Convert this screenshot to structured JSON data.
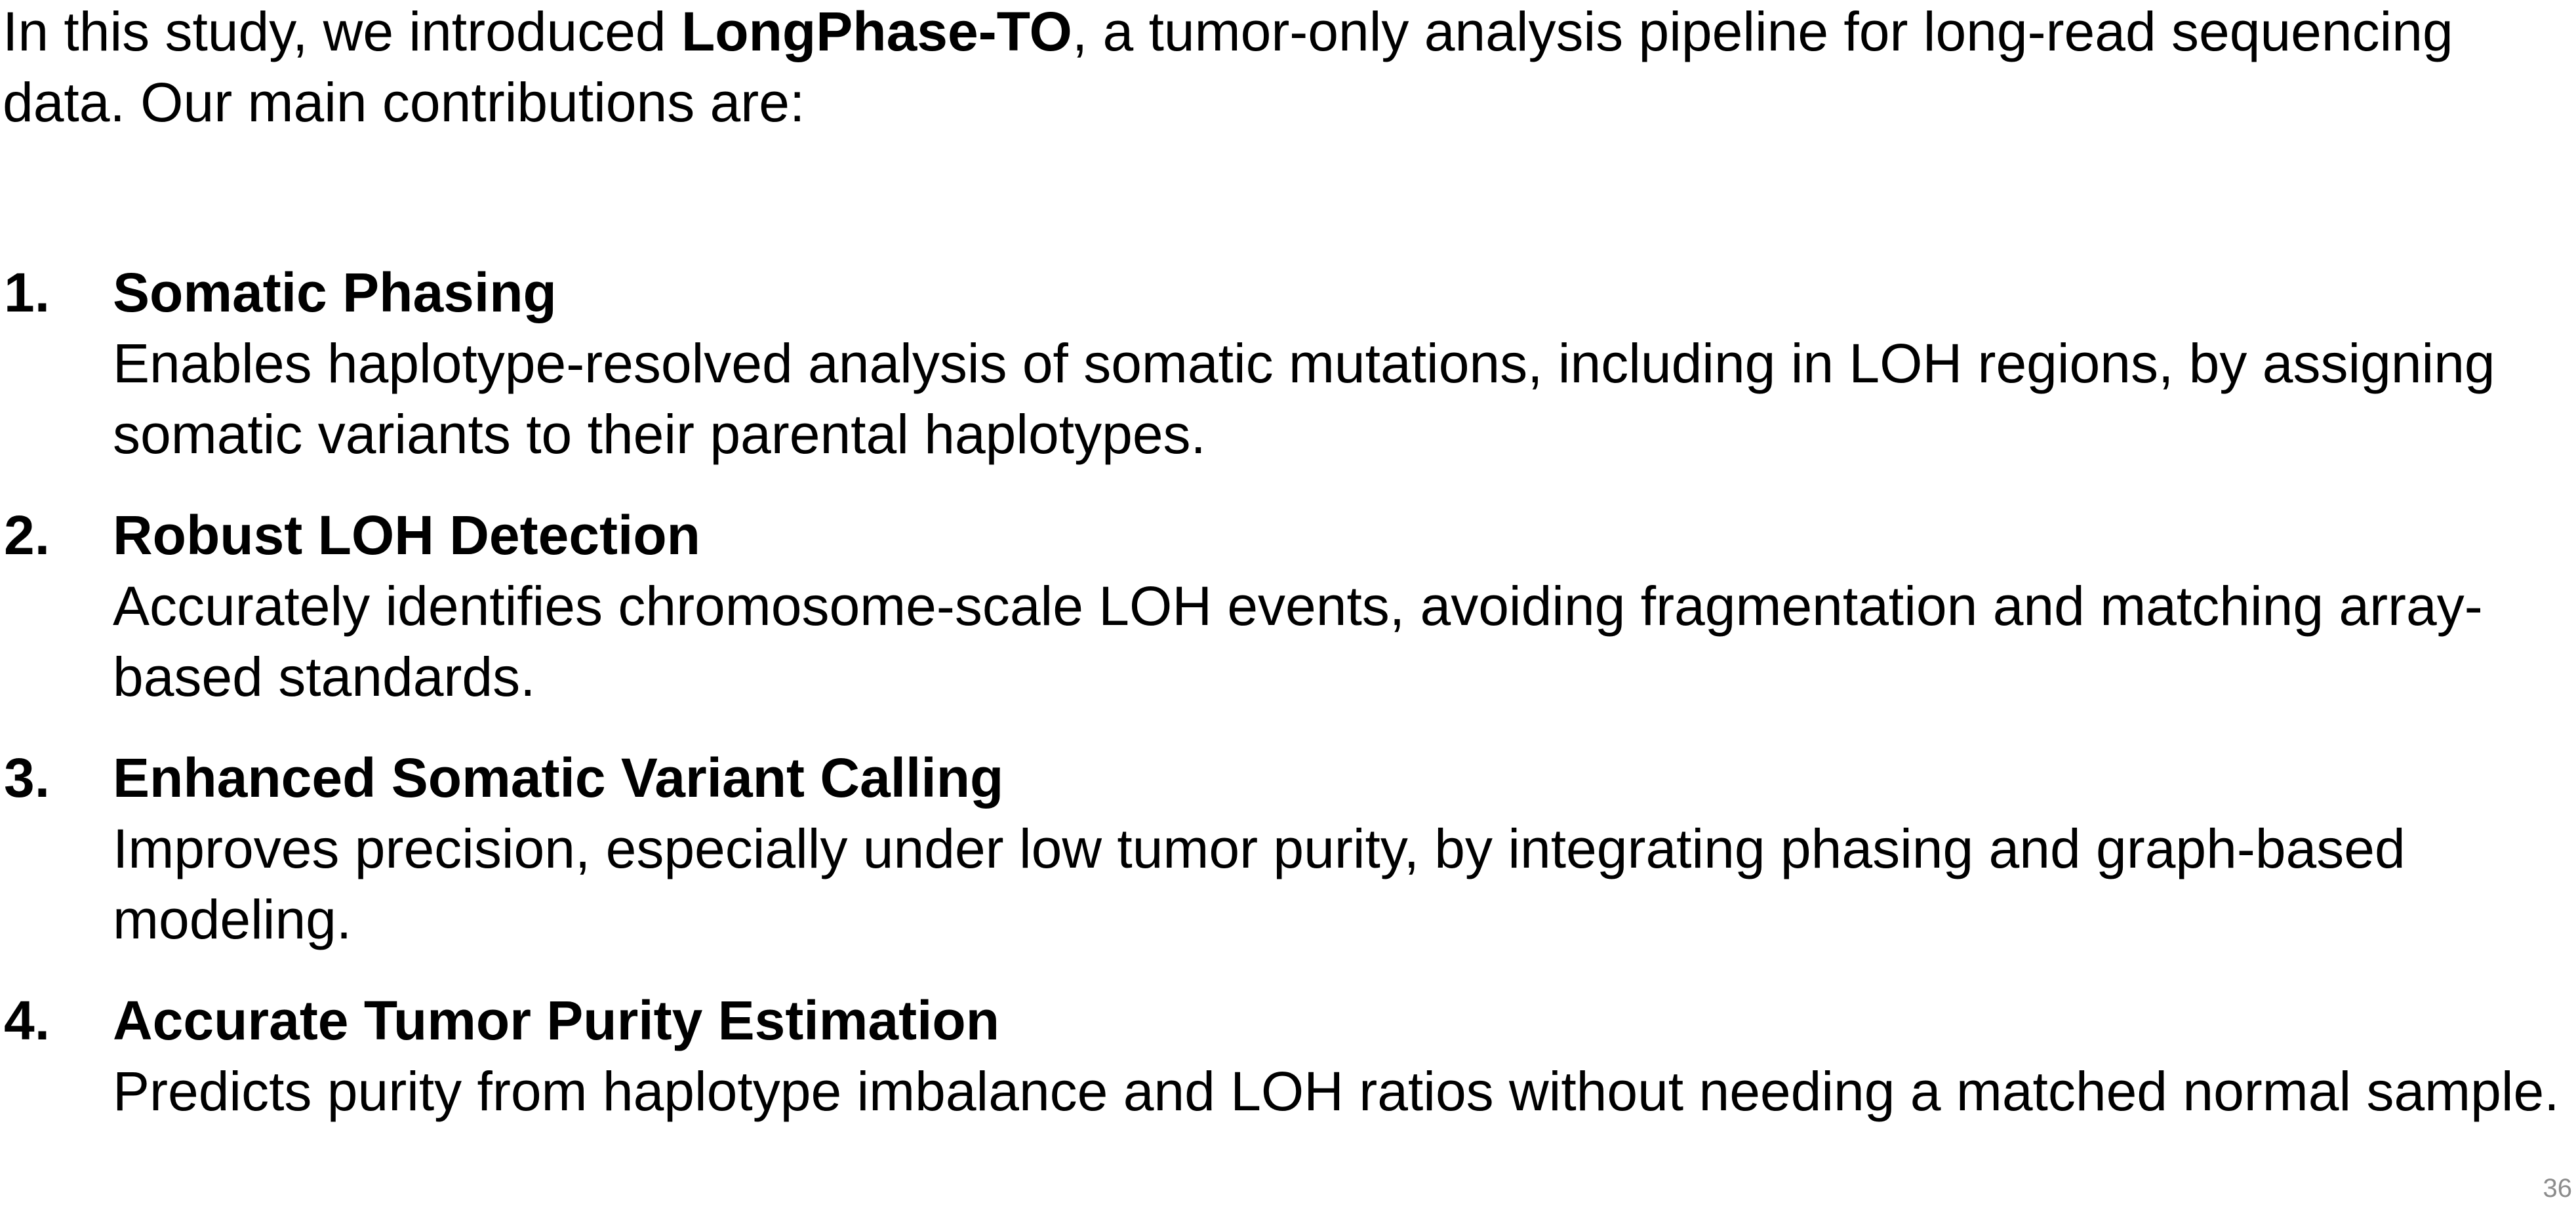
{
  "intro": {
    "before": "In this study, we introduced ",
    "emphasis": "LongPhase-TO",
    "after": ", a tumor-only analysis pipeline for long-read sequencing data. Our main contributions are:"
  },
  "contributions": [
    {
      "number": "1.",
      "title": "Somatic Phasing",
      "description": "Enables haplotype-resolved analysis of somatic mutations, including in LOH regions, by assigning somatic variants to their parental haplotypes."
    },
    {
      "number": "2.",
      "title": "Robust LOH Detection",
      "description": "Accurately identifies chromosome-scale LOH events, avoiding fragmentation and matching array-based standards."
    },
    {
      "number": "3.",
      "title": "Enhanced Somatic Variant Calling",
      "description": "Improves precision, especially under low tumor purity, by integrating phasing and graph-based modeling."
    },
    {
      "number": "4.",
      "title": "Accurate Tumor Purity Estimation",
      "description": "Predicts purity from haplotype imbalance and LOH ratios without needing a matched normal sample."
    }
  ],
  "page_number": "36"
}
